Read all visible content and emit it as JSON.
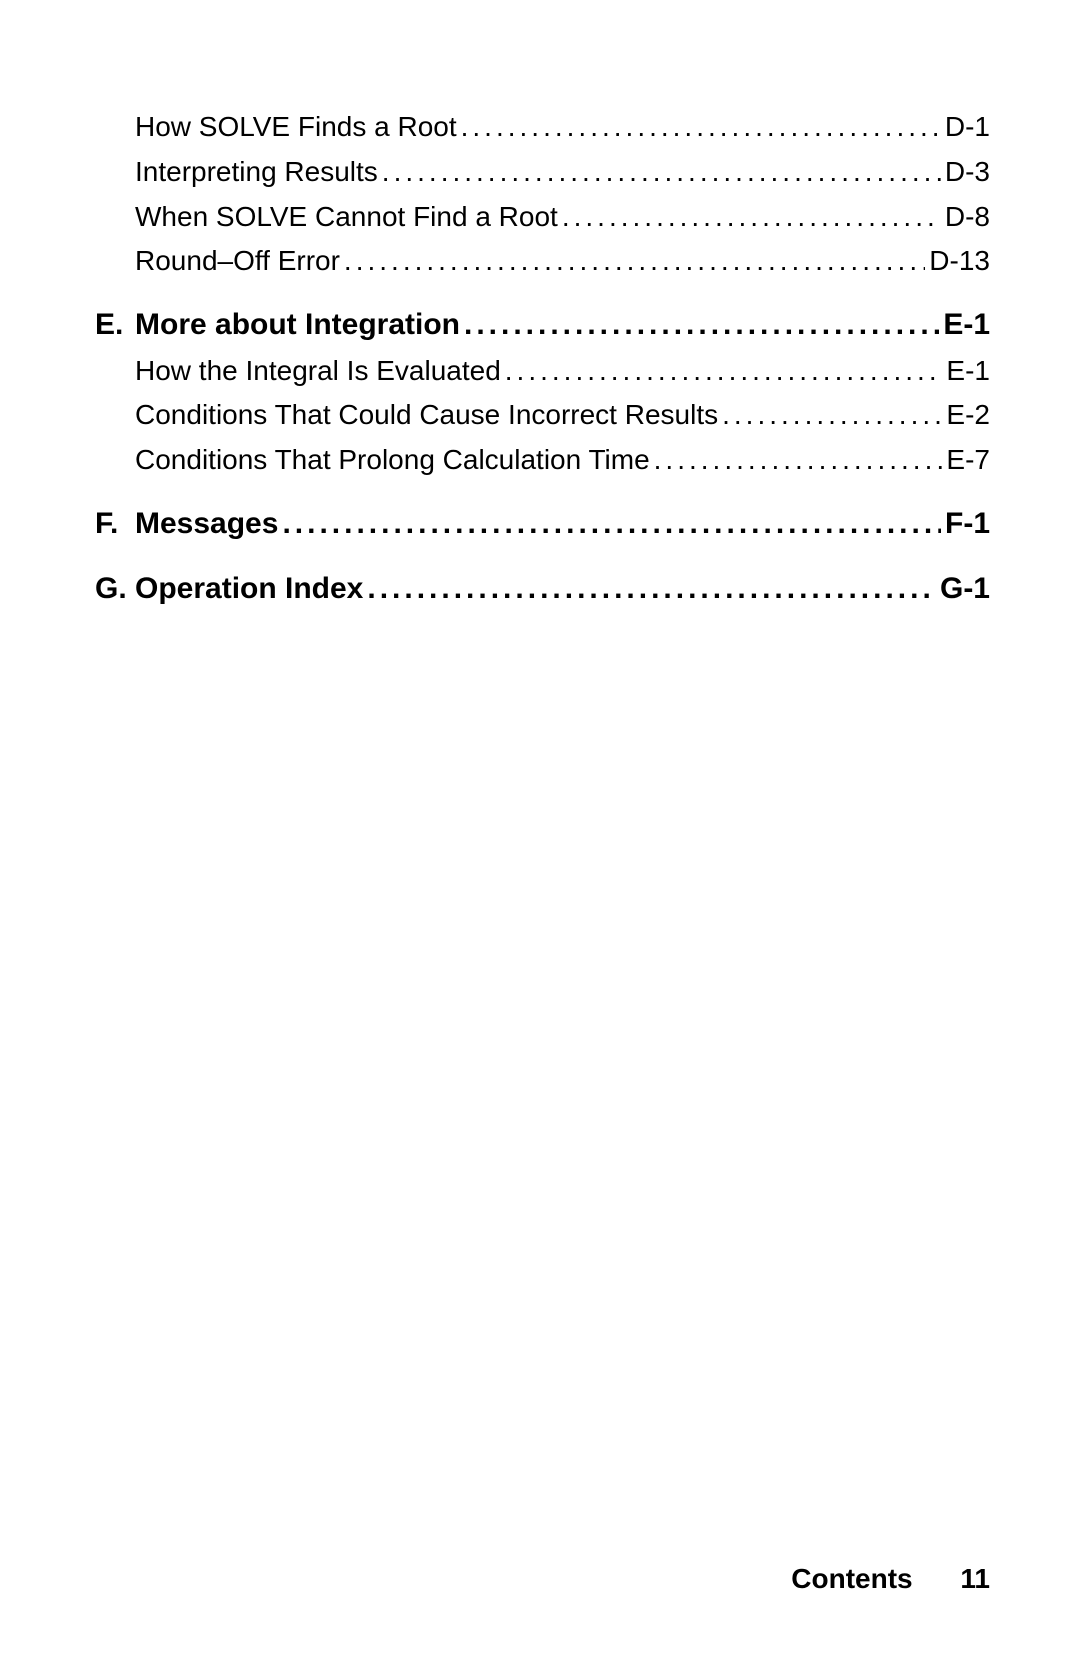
{
  "toc": {
    "d_items": [
      {
        "title": "How SOLVE Finds a Root",
        "page": "D-1"
      },
      {
        "title": "Interpreting Results",
        "page": "D-3"
      },
      {
        "title": "When SOLVE Cannot Find a Root",
        "page": "D-8"
      },
      {
        "title": "Round–Off Error",
        "page": "D-13"
      }
    ],
    "e": {
      "letter": "E.",
      "title": "More about Integration",
      "page": "E-1"
    },
    "e_items": [
      {
        "title": "How the Integral Is Evaluated",
        "page": "E-1"
      },
      {
        "title": "Conditions That Could Cause Incorrect Results",
        "page": "E-2"
      },
      {
        "title": "Conditions That Prolong Calculation Time",
        "page": "E-7"
      }
    ],
    "f": {
      "letter": "F.",
      "title": "Messages",
      "page": "F-1"
    },
    "g": {
      "letter": "G.",
      "title": "Operation Index",
      "page": "G-1"
    }
  },
  "footer": {
    "label": "Contents",
    "page": "11"
  },
  "dots": "........................................................................................................................"
}
